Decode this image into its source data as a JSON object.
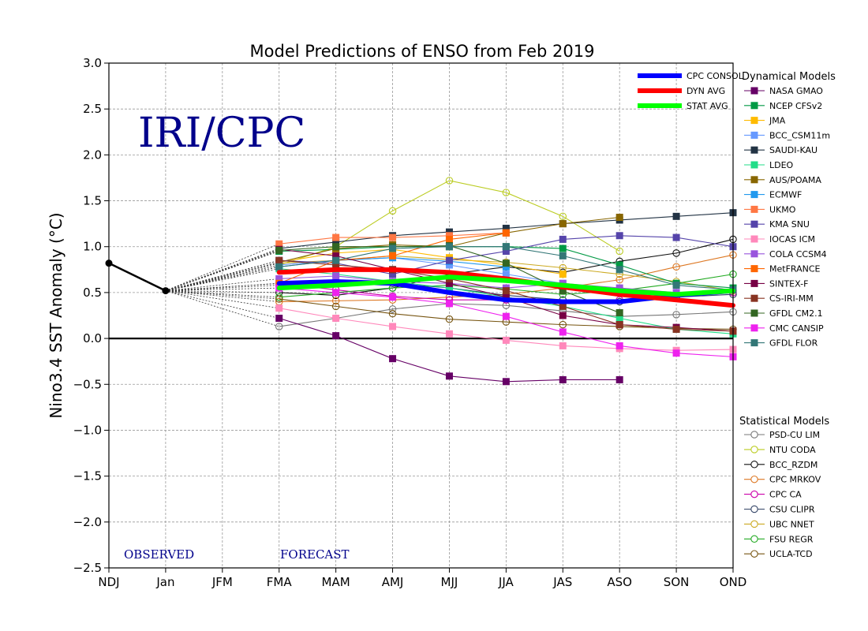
{
  "chart_data": {
    "type": "line",
    "title": "Model Predictions of ENSO from Feb 2019",
    "ylabel": "Nino3.4 SST Anomaly (°C)",
    "xlabel": "",
    "ylim": [
      -2.5,
      3.0
    ],
    "yticks": [
      3.0,
      2.5,
      2.0,
      1.5,
      1.0,
      0.5,
      0.0,
      -0.5,
      -1.0,
      -1.5,
      -2.0,
      -2.5
    ],
    "ytick_labels": [
      "3.0",
      "2.5",
      "2.0",
      "1.5",
      "1.0",
      "0.5",
      "0.0",
      "−0.5",
      "−1.0",
      "−1.5",
      "−2.0",
      "−2.5"
    ],
    "categories": [
      "NDJ",
      "Jan",
      "JFM",
      "FMA",
      "MAM",
      "AMJ",
      "MJJ",
      "JJA",
      "JAS",
      "ASO",
      "SON",
      "OND"
    ],
    "grid": true,
    "watermark": "IRI/CPC",
    "watermark_color": "#00008b",
    "label_observed": "OBSERVED",
    "label_forecast": "FORECAST",
    "label_color": "#00008b",
    "observed": {
      "x": [
        0,
        1
      ],
      "values": [
        0.82,
        0.52
      ],
      "color": "#000000"
    },
    "summary_lines": [
      {
        "name": "CPC CONSOL",
        "color": "#0000ff",
        "values": [
          0.6,
          0.62,
          0.6,
          0.5,
          0.42,
          0.4,
          0.4,
          0.47,
          0.52
        ]
      },
      {
        "name": "DYN AVG",
        "color": "#ff0000",
        "values": [
          0.72,
          0.75,
          0.75,
          0.72,
          0.65,
          0.56,
          0.48,
          0.42,
          0.36
        ]
      },
      {
        "name": "STAT AVG",
        "color": "#00ff00",
        "values": [
          0.55,
          0.58,
          0.62,
          0.67,
          0.63,
          0.58,
          0.52,
          0.48,
          0.52
        ]
      }
    ],
    "dynamical_header": "Dynamical Models",
    "dynamical_models": [
      {
        "name": "NASA GMAO",
        "color": "#660066",
        "values": [
          0.22,
          0.03,
          -0.22,
          -0.41,
          -0.47,
          -0.45,
          -0.45
        ]
      },
      {
        "name": "NCEP CFSv2",
        "color": "#009944",
        "values": [
          0.95,
          0.97,
          1.0,
          1.0,
          1.0,
          0.98,
          0.8,
          0.6,
          0.55
        ]
      },
      {
        "name": "JMA",
        "color": "#ffbb00",
        "values": [
          0.83,
          0.93,
          0.97,
          0.88,
          0.8,
          0.7
        ]
      },
      {
        "name": "BCC_CSM11m",
        "color": "#6699ff",
        "values": [
          0.8,
          0.85,
          0.88,
          0.8,
          0.7,
          0.6,
          0.52
        ]
      },
      {
        "name": "SAUDI-KAU",
        "color": "#223344",
        "values": [
          0.98,
          1.05,
          1.12,
          1.16,
          1.2,
          1.25,
          1.29,
          1.33,
          1.37
        ]
      },
      {
        "name": "LDEO",
        "color": "#22dd88",
        "values": [
          0.76,
          0.7,
          0.62,
          0.55,
          0.45,
          0.35,
          0.22,
          0.1,
          0.05
        ]
      },
      {
        "name": "AUS/POAMA",
        "color": "#886600",
        "values": [
          0.83,
          0.98,
          1.02,
          1.0,
          1.15,
          1.25,
          1.32
        ]
      },
      {
        "name": "ECMWF",
        "color": "#2299ee",
        "values": [
          0.78,
          0.85,
          0.88,
          0.84,
          0.78
        ]
      },
      {
        "name": "UKMO",
        "color": "#ff7744",
        "values": [
          1.03,
          1.1,
          1.1,
          1.12,
          1.15
        ]
      },
      {
        "name": "KMA SNU",
        "color": "#5544aa",
        "values": [
          0.85,
          0.82,
          0.7,
          0.85,
          0.95,
          1.08,
          1.12,
          1.1,
          1.0
        ]
      },
      {
        "name": "IOCAS ICM",
        "color": "#ff88bb",
        "values": [
          0.33,
          0.22,
          0.13,
          0.05,
          -0.02,
          -0.08,
          -0.11,
          -0.13,
          -0.12
        ]
      },
      {
        "name": "COLA CCSM4",
        "color": "#9955dd",
        "values": [
          0.65,
          0.68,
          0.62,
          0.6,
          0.55,
          0.6,
          0.55,
          0.5
        ]
      },
      {
        "name": "MetFRANCE",
        "color": "#ff6600",
        "values": [
          0.6,
          0.85,
          0.9,
          1.08,
          1.15
        ]
      },
      {
        "name": "SINTEX-F",
        "color": "#770044",
        "values": [
          0.97,
          0.9,
          0.75,
          0.6,
          0.45,
          0.25,
          0.15,
          0.12,
          0.08
        ]
      },
      {
        "name": "CS-IRI-MM",
        "color": "#883322",
        "values": [
          0.85,
          0.8,
          0.75,
          0.65,
          0.52,
          0.35,
          0.15,
          0.1,
          0.08
        ]
      },
      {
        "name": "GFDL CM2.1",
        "color": "#336622",
        "values": [
          0.96,
          1.0,
          1.0,
          1.01,
          0.82,
          0.52,
          0.28
        ]
      },
      {
        "name": "CMC CANSIP",
        "color": "#ee22ee",
        "values": [
          0.55,
          0.5,
          0.45,
          0.38,
          0.24,
          0.07,
          -0.08,
          -0.16,
          -0.2
        ]
      },
      {
        "name": "GFDL FLOR",
        "color": "#337777",
        "values": [
          0.78,
          0.85,
          0.98,
          1.0,
          1.0,
          0.9,
          0.75,
          0.58,
          0.53
        ]
      }
    ],
    "statistical_header": "Statistical Models",
    "statistical_models": [
      {
        "name": "PSD-CU LIM",
        "color": "#777777",
        "values": [
          0.13,
          0.22,
          0.32,
          0.38,
          0.36,
          0.3,
          0.24,
          0.26,
          0.29
        ]
      },
      {
        "name": "NTU CODA",
        "color": "#bbcc22",
        "values": [
          0.8,
          1.0,
          1.39,
          1.72,
          1.59,
          1.33,
          0.95
        ]
      },
      {
        "name": "BCC_RZDM",
        "color": "#111111",
        "values": [
          0.5,
          0.47,
          0.55,
          0.7,
          0.78,
          0.72,
          0.84,
          0.93,
          1.08
        ]
      },
      {
        "name": "CPC MRKOV",
        "color": "#dd7722",
        "values": [
          0.4,
          0.41,
          0.42,
          0.45,
          0.48,
          0.55,
          0.64,
          0.78,
          0.91
        ]
      },
      {
        "name": "CPC CA",
        "color": "#cc00aa",
        "values": [
          0.6,
          0.53,
          0.46,
          0.42,
          0.42,
          0.42,
          0.42,
          0.45,
          0.5
        ]
      },
      {
        "name": "CSU CLIPR",
        "color": "#334466",
        "values": [
          0.58,
          0.6,
          0.6,
          0.55,
          0.47,
          0.42,
          0.4,
          0.45,
          0.48
        ]
      },
      {
        "name": "UBC NNET",
        "color": "#ccaa22",
        "values": [
          0.82,
          0.85,
          0.9,
          0.86,
          0.83,
          0.77,
          0.7,
          0.62,
          0.52
        ]
      },
      {
        "name": "FSU REGR",
        "color": "#22aa22",
        "values": [
          0.45,
          0.5,
          0.55,
          0.58,
          0.54,
          0.48,
          0.52,
          0.6,
          0.7
        ]
      },
      {
        "name": "UCLA-TCD",
        "color": "#775511",
        "values": [
          0.43,
          0.35,
          0.27,
          0.21,
          0.18,
          0.15,
          0.13,
          0.11,
          0.1
        ]
      }
    ]
  }
}
